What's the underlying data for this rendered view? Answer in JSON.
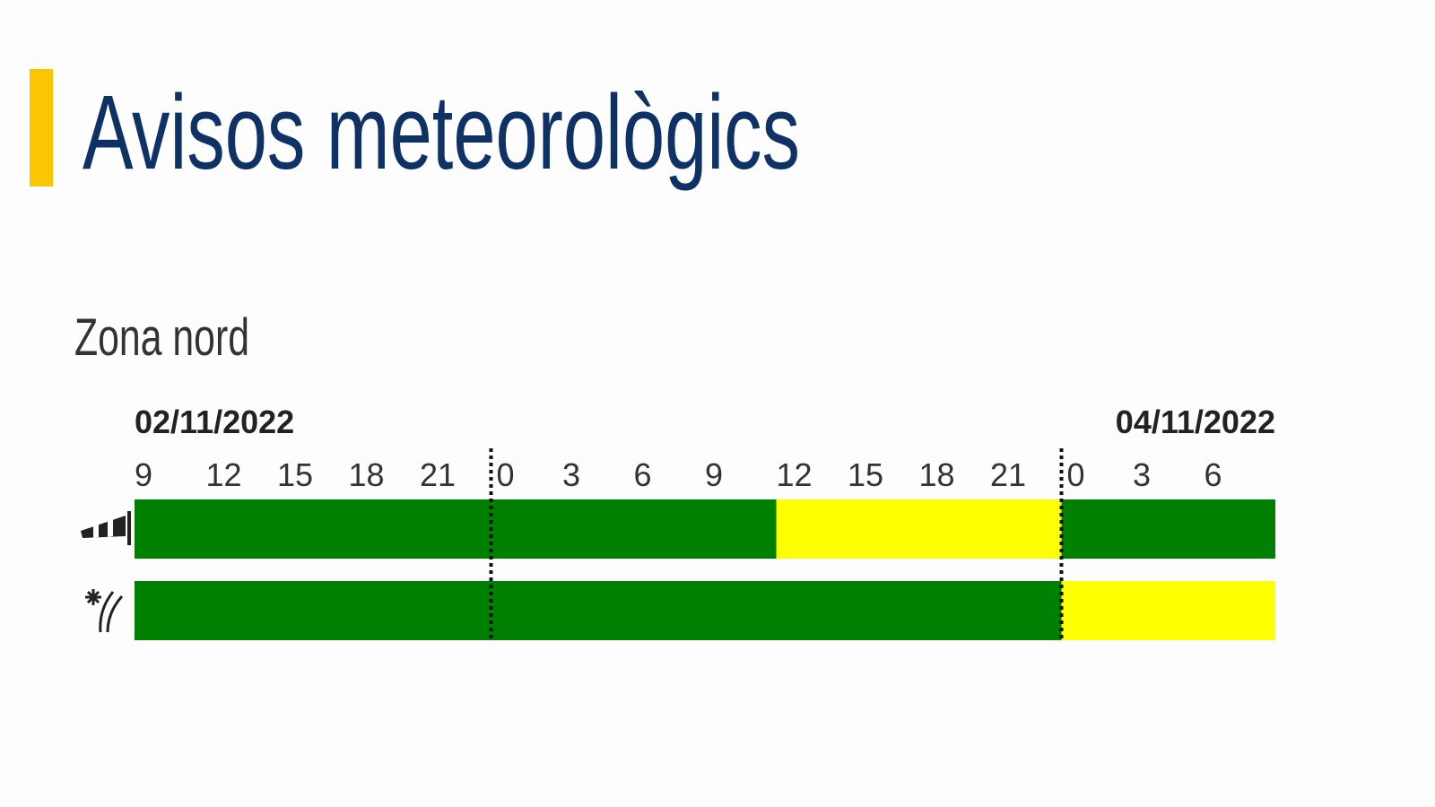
{
  "header": {
    "title": "Avisos meteorològics"
  },
  "zone": {
    "title": "Zona nord"
  },
  "timeline": {
    "dates": [
      "02/11/2022",
      "04/11/2022"
    ],
    "hours": [
      9,
      12,
      15,
      18,
      21,
      0,
      3,
      6,
      9,
      12,
      15,
      18,
      21,
      0,
      3,
      6
    ],
    "rows": [
      {
        "segments": [
          {
            "color": "#008000",
            "from": 0,
            "to": 27
          },
          {
            "color": "#ffff00",
            "from": 27,
            "to": 39
          },
          {
            "color": "#008000",
            "from": 39,
            "to": 48
          }
        ]
      },
      {
        "segments": [
          {
            "color": "#008000",
            "from": 0,
            "to": 39
          },
          {
            "color": "#ffff00",
            "from": 39,
            "to": 48
          }
        ]
      }
    ]
  }
}
